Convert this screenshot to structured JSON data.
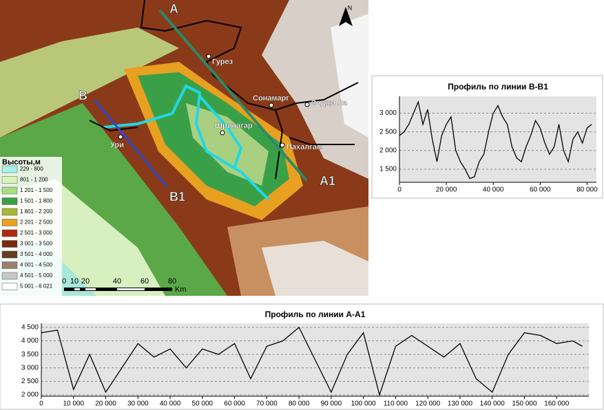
{
  "map": {
    "north": "N",
    "line_labels": [
      "A",
      "A1",
      "B",
      "B1"
    ],
    "places": [
      "Гурез",
      "Сонамарг",
      "Зоджи Ла",
      "Шринагар",
      "Пахалгам",
      "Ури"
    ],
    "legend": {
      "title": "Высоты,м",
      "items": [
        "229 - 800",
        "801 - 1 200",
        "1 201 - 1 500",
        "1 501 - 1 800",
        "1 801 - 2 200",
        "2 201 - 2 500",
        "2 501 - 3 000",
        "3 001 - 3 500",
        "3 501 - 4 000",
        "4 001 - 4 500",
        "4 501 - 5 000",
        "5 001 - 6 021"
      ],
      "colors": [
        "#a8f0e8",
        "#d8f5b8",
        "#a8dd80",
        "#3aa048",
        "#a8b830",
        "#e8a020",
        "#b02a10",
        "#7a2a10",
        "#6a3a20",
        "#9a8070",
        "#c8c8c8",
        "#ffffff"
      ]
    },
    "scale": {
      "labels": [
        "0",
        "10",
        "20",
        "40",
        "60",
        "80"
      ],
      "unit": "Km"
    }
  },
  "chart_data": [
    {
      "type": "line",
      "title": "Профиль по линии В-В1",
      "grid": true,
      "x": [
        0,
        2000,
        4000,
        6000,
        8000,
        10000,
        12000,
        14000,
        16000,
        18000,
        20000,
        22000,
        24000,
        26000,
        28000,
        30000,
        32000,
        34000,
        36000,
        38000,
        40000,
        42000,
        44000,
        46000,
        48000,
        50000,
        52000,
        54000,
        56000,
        58000,
        60000,
        62000,
        64000,
        66000,
        68000,
        70000,
        72000,
        74000,
        76000,
        78000,
        80000,
        82000
      ],
      "series": [
        {
          "color": "#000000",
          "values": [
            2400,
            2500,
            2700,
            3000,
            3300,
            2700,
            3100,
            2300,
            1700,
            2400,
            2700,
            2900,
            2000,
            1700,
            1500,
            1250,
            1300,
            1700,
            1900,
            2500,
            3000,
            3200,
            2900,
            2700,
            2100,
            1800,
            1700,
            2100,
            2400,
            2800,
            2600,
            2200,
            1900,
            2100,
            2700,
            2000,
            1700,
            2300,
            2500,
            2200,
            2600,
            2700
          ]
        }
      ],
      "xlim": [
        0,
        84000
      ],
      "ylim": [
        1150,
        3450
      ],
      "xticks": [
        0,
        {
          "value": 20000,
          "label": "20 000"
        },
        {
          "value": 40000,
          "label": "40 000"
        },
        {
          "value": 60000,
          "label": "60 000"
        },
        {
          "value": 80000,
          "label": "80 000"
        }
      ],
      "yticks": [
        {
          "value": 1500,
          "label": "1 500"
        },
        {
          "value": 2000,
          "label": "2 000"
        },
        {
          "value": 2500,
          "label": "2 500"
        },
        {
          "value": 3000,
          "label": "3 000"
        }
      ]
    },
    {
      "type": "line",
      "title": "Профиль по линии А-А1",
      "grid": true,
      "x": [
        0,
        5000,
        10000,
        15000,
        20000,
        25000,
        30000,
        35000,
        40000,
        45000,
        50000,
        55000,
        60000,
        65000,
        70000,
        75000,
        80000,
        85000,
        90000,
        95000,
        100000,
        105000,
        110000,
        115000,
        120000,
        125000,
        130000,
        135000,
        140000,
        145000,
        150000,
        155000,
        160000,
        165000,
        168000
      ],
      "series": [
        {
          "color": "#000000",
          "values": [
            4300,
            4400,
            2200,
            3500,
            2100,
            3000,
            3900,
            3400,
            3700,
            3000,
            3700,
            3500,
            3900,
            2600,
            3800,
            4000,
            4500,
            3300,
            2100,
            3500,
            4300,
            2000,
            3800,
            4200,
            3800,
            3400,
            3900,
            2600,
            2100,
            3500,
            4300,
            4200,
            3900,
            4000,
            3800
          ]
        }
      ],
      "xlim": [
        0,
        170000
      ],
      "ylim": [
        1950,
        4650
      ],
      "xticks": [
        0,
        {
          "value": 10000,
          "label": "10 000"
        },
        {
          "value": 20000,
          "label": "20 000"
        },
        {
          "value": 30000,
          "label": "30 000"
        },
        {
          "value": 40000,
          "label": "40 000"
        },
        {
          "value": 50000,
          "label": "50 000"
        },
        {
          "value": 60000,
          "label": "60 000"
        },
        {
          "value": 70000,
          "label": "70 000"
        },
        {
          "value": 80000,
          "label": "80 000"
        },
        {
          "value": 90000,
          "label": "90 000"
        },
        {
          "value": 100000,
          "label": "100 000"
        },
        {
          "value": 110000,
          "label": "110 000"
        },
        {
          "value": 120000,
          "label": "120 000"
        },
        {
          "value": 130000,
          "label": "130 000"
        },
        {
          "value": 140000,
          "label": "140 000"
        },
        {
          "value": 150000,
          "label": "150 000"
        },
        {
          "value": 160000,
          "label": "160 000"
        }
      ],
      "yticks": [
        {
          "value": 2000,
          "label": "2 000"
        },
        {
          "value": 2500,
          "label": "2 500"
        },
        {
          "value": 3000,
          "label": "3 000"
        },
        {
          "value": 3500,
          "label": "3 500"
        },
        {
          "value": 4000,
          "label": "4 000"
        },
        {
          "value": 4500,
          "label": "4 500"
        }
      ]
    }
  ]
}
